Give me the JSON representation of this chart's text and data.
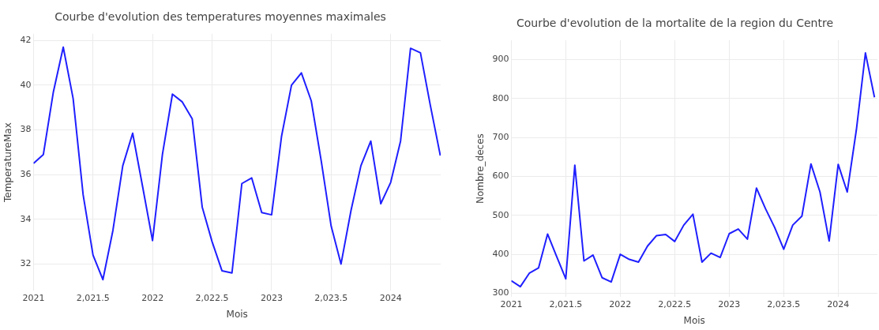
{
  "chart_data": [
    {
      "type": "line",
      "title": "Courbe d'evolution des temperatures moyennes maximales",
      "xlabel": "Mois",
      "ylabel": "TemperatureMax",
      "grid": true,
      "x": [
        2021,
        2021.083,
        2021.167,
        2021.25,
        2021.333,
        2021.417,
        2021.5,
        2021.583,
        2021.667,
        2021.75,
        2021.833,
        2021.917,
        2022,
        2022.083,
        2022.167,
        2022.25,
        2022.333,
        2022.417,
        2022.5,
        2022.583,
        2022.667,
        2022.75,
        2022.833,
        2022.917,
        2023,
        2023.083,
        2023.167,
        2023.25,
        2023.333,
        2023.417,
        2023.5,
        2023.583,
        2023.667,
        2023.75,
        2023.833,
        2023.917,
        2024,
        2024.083,
        2024.167,
        2024.25,
        2024.333,
        2024.417
      ],
      "series": [
        {
          "color": "#1f1fff",
          "values": [
            36.5,
            36.9,
            39.7,
            41.7,
            39.4,
            35.1,
            32.4,
            31.3,
            33.5,
            36.4,
            37.85,
            35.45,
            33.05,
            36.9,
            39.6,
            39.25,
            38.5,
            34.55,
            33.0,
            31.7,
            31.6,
            35.6,
            35.85,
            34.3,
            34.2,
            37.7,
            40.0,
            40.55,
            39.3,
            36.6,
            33.7,
            32.0,
            34.4,
            36.4,
            37.5,
            34.7,
            35.65,
            37.5,
            41.65,
            41.45,
            39.1,
            36.85
          ]
        }
      ],
      "xlim": [
        2021,
        2024.42
      ],
      "xticks": [
        2021,
        {
          "value": 2021.5,
          "label": "2,021.5"
        },
        2022,
        {
          "value": 2022.5,
          "label": "2,022.5"
        },
        2023,
        {
          "value": 2023.5,
          "label": "2,023.5"
        },
        2024
      ],
      "ylim": [
        30.8,
        42.3
      ],
      "yticks": [
        32,
        34,
        36,
        38,
        40,
        42
      ]
    },
    {
      "type": "line",
      "title": "Courbe d'evolution de la mortalite de la region du Centre",
      "xlabel": "Mois",
      "ylabel": "Nombre_deces",
      "grid": true,
      "x": [
        2021,
        2021.083,
        2021.167,
        2021.25,
        2021.333,
        2021.417,
        2021.5,
        2021.583,
        2021.667,
        2021.75,
        2021.833,
        2021.917,
        2022,
        2022.083,
        2022.167,
        2022.25,
        2022.333,
        2022.417,
        2022.5,
        2022.583,
        2022.667,
        2022.75,
        2022.833,
        2022.917,
        2023,
        2023.083,
        2023.167,
        2023.25,
        2023.333,
        2023.417,
        2023.5,
        2023.583,
        2023.667,
        2023.75,
        2023.833,
        2023.917,
        2024,
        2024.083,
        2024.167,
        2024.25,
        2024.333
      ],
      "series": [
        {
          "color": "#1f1fff",
          "values": [
            332,
            317,
            352,
            365,
            452,
            394,
            337,
            629,
            383,
            398,
            340,
            329,
            400,
            387,
            380,
            421,
            448,
            451,
            433,
            475,
            503,
            380,
            403,
            392,
            453,
            465,
            439,
            570,
            517,
            469,
            413,
            475,
            498,
            632,
            560,
            434,
            631,
            560,
            720,
            917,
            803
          ]
        }
      ],
      "xlim": [
        2021,
        2024.36
      ],
      "xticks": [
        2021,
        {
          "value": 2021.5,
          "label": "2,021.5"
        },
        2022,
        {
          "value": 2022.5,
          "label": "2,022.5"
        },
        2023,
        {
          "value": 2023.5,
          "label": "2,023.5"
        },
        2024
      ],
      "ylim": [
        290,
        950
      ],
      "yticks": [
        300,
        400,
        500,
        600,
        700,
        800,
        900
      ]
    }
  ]
}
